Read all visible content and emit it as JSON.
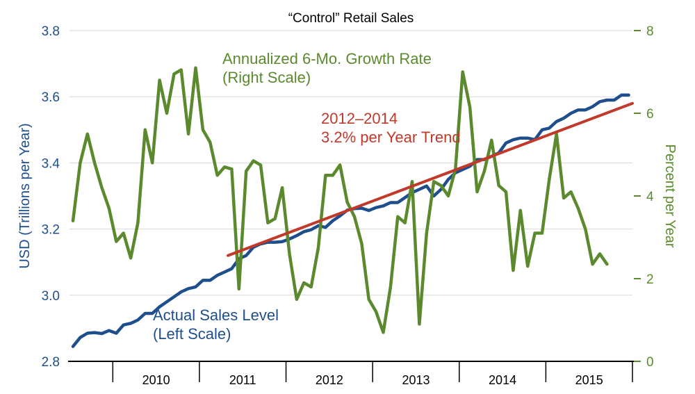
{
  "chart_data": {
    "type": "line",
    "title": "“Control” Retail Sales",
    "ylabel_left": "USD (Trillions per Year)",
    "ylabel_right": "Percent per Year",
    "ylim_left": [
      2.8,
      3.8
    ],
    "ylim_right": [
      0,
      8
    ],
    "yticks_left": [
      "2.8",
      "3.0",
      "3.2",
      "3.4",
      "3.6",
      "3.8"
    ],
    "yticks_right": [
      "0",
      "2",
      "4",
      "6",
      "8"
    ],
    "x_range": [
      2009.5,
      2016.0
    ],
    "xtick_labels": [
      "2010",
      "2011",
      "2012",
      "2013",
      "2014",
      "2015"
    ],
    "grid": "horizontal",
    "colors": {
      "sales": "#1f4e8c",
      "growth": "#5b8a2e",
      "trend": "#c0392b"
    },
    "annotations": {
      "growth": [
        "Annualized 6-Mo. Growth Rate",
        "(Right Scale)"
      ],
      "trend": [
        "2012–2014",
        "3.2% per Year Trend"
      ],
      "sales": [
        "Actual Sales Level",
        "(Left Scale)"
      ]
    },
    "series": [
      {
        "key": "sales",
        "axis": "left",
        "x_start": 2009.54,
        "x_step": 0.08333,
        "values": [
          2.845,
          2.872,
          2.885,
          2.887,
          2.884,
          2.893,
          2.885,
          2.91,
          2.915,
          2.925,
          2.945,
          2.945,
          2.965,
          2.98,
          2.995,
          3.01,
          3.02,
          3.025,
          3.045,
          3.045,
          3.06,
          3.07,
          3.08,
          3.11,
          3.12,
          3.145,
          3.155,
          3.16,
          3.16,
          3.162,
          3.17,
          3.18,
          3.192,
          3.198,
          3.21,
          3.205,
          3.225,
          3.24,
          3.257,
          3.262,
          3.263,
          3.256,
          3.265,
          3.27,
          3.28,
          3.28,
          3.295,
          3.31,
          3.32,
          3.33,
          3.3,
          3.32,
          3.35,
          3.37,
          3.38,
          3.39,
          3.41,
          3.41,
          3.42,
          3.43,
          3.46,
          3.47,
          3.475,
          3.475,
          3.47,
          3.5,
          3.505,
          3.525,
          3.535,
          3.55,
          3.56,
          3.56,
          3.57,
          3.585,
          3.59,
          3.59,
          3.605,
          3.605
        ]
      },
      {
        "key": "growth",
        "axis": "right",
        "x_start": 2009.54,
        "x_step": 0.08333,
        "values": [
          3.4,
          4.8,
          5.5,
          4.8,
          4.2,
          3.7,
          2.9,
          3.1,
          2.5,
          3.35,
          5.6,
          4.8,
          6.8,
          6.0,
          6.95,
          7.05,
          5.5,
          7.1,
          5.6,
          5.3,
          4.5,
          4.7,
          4.65,
          1.75,
          4.6,
          4.85,
          4.75,
          3.35,
          3.45,
          4.2,
          2.6,
          1.5,
          1.9,
          1.8,
          2.75,
          4.5,
          4.5,
          4.75,
          3.85,
          3.5,
          2.85,
          1.5,
          1.2,
          0.7,
          1.8,
          3.5,
          3.35,
          4.35,
          0.9,
          3.1,
          4.35,
          4.25,
          4.0,
          4.65,
          7.0,
          6.15,
          4.1,
          4.6,
          5.35,
          4.25,
          4.1,
          2.2,
          3.65,
          2.3,
          3.1,
          3.1,
          4.4,
          5.5,
          3.95,
          4.1,
          3.7,
          3.2,
          2.35,
          2.6,
          2.35
        ]
      },
      {
        "key": "trend",
        "axis": "left",
        "x": [
          2011.33,
          2016.0
        ],
        "values": [
          3.12,
          3.58
        ]
      }
    ]
  }
}
